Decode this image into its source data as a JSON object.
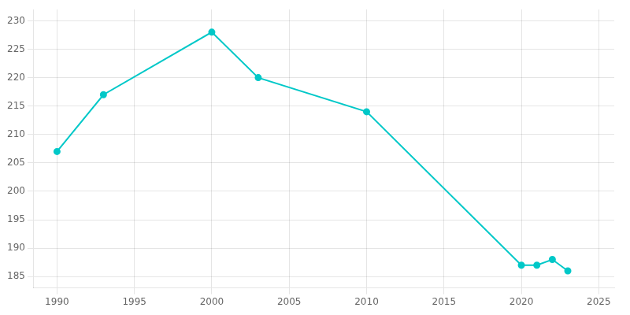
{
  "chart_data": {
    "type": "line",
    "x": [
      1990,
      1993,
      2000,
      2003,
      2010,
      2020,
      2021,
      2022,
      2023
    ],
    "values": [
      207,
      217,
      228,
      220,
      214,
      187,
      187,
      188,
      186
    ],
    "color": "#00C8C8",
    "marker": "circle",
    "xlim": [
      1988.5,
      2026
    ],
    "ylim": [
      183,
      232
    ],
    "xticks": [
      1990,
      1995,
      2000,
      2005,
      2010,
      2015,
      2020,
      2025
    ],
    "yticks": [
      185,
      190,
      195,
      200,
      205,
      210,
      215,
      220,
      225,
      230
    ],
    "grid": true
  }
}
